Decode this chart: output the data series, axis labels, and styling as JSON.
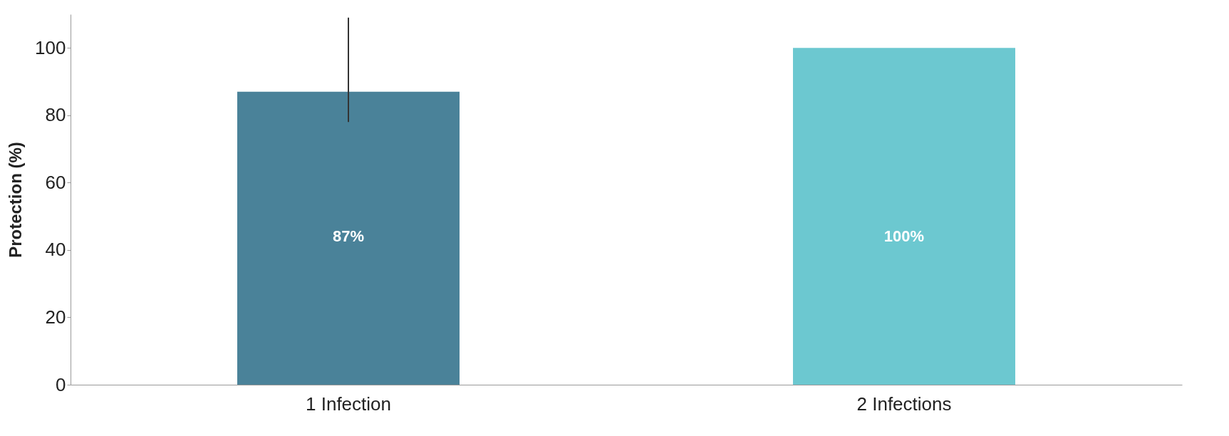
{
  "chart_data": {
    "type": "bar",
    "ylabel": "Protection (%)",
    "categories": [
      "1 Infection",
      "2 Infections"
    ],
    "values": [
      87,
      100
    ],
    "colors": [
      "#4a8299",
      "#6cc8d0"
    ],
    "errors": [
      [
        78,
        109
      ],
      null
    ],
    "value_labels": [
      "87%",
      "100%"
    ],
    "ylim": [
      0,
      110
    ],
    "yticks": [
      0,
      20,
      40,
      60,
      80,
      100
    ],
    "grid": false
  }
}
